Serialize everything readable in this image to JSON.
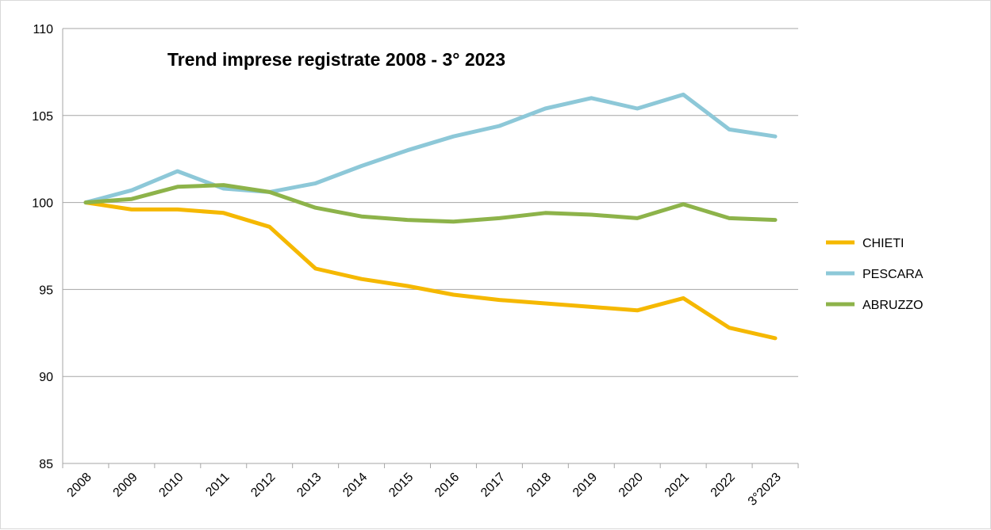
{
  "chart_data": {
    "type": "line",
    "title": "Trend imprese registrate 2008 - 3° 2023",
    "categories": [
      "2008",
      "2009",
      "2010",
      "2011",
      "2012",
      "2013",
      "2014",
      "2015",
      "2016",
      "2017",
      "2018",
      "2019",
      "2020",
      "2021",
      "2022",
      "3°2023"
    ],
    "ylim": [
      85,
      110
    ],
    "yticks": [
      85,
      90,
      95,
      100,
      105,
      110
    ],
    "grid": true,
    "legend_position": "right",
    "series": [
      {
        "name": "CHIETI",
        "color": "#f5b800",
        "values": [
          100,
          99.6,
          99.6,
          99.4,
          98.6,
          96.2,
          95.6,
          95.2,
          94.7,
          94.4,
          94.2,
          94.0,
          93.8,
          94.5,
          92.8,
          92.2
        ]
      },
      {
        "name": "PESCARA",
        "color": "#8dc8d8",
        "values": [
          100,
          100.7,
          101.8,
          100.8,
          100.6,
          101.1,
          102.1,
          103.0,
          103.8,
          104.4,
          105.4,
          106.0,
          105.4,
          106.2,
          104.2,
          103.8
        ]
      },
      {
        "name": "ABRUZZO",
        "color": "#8db34a",
        "values": [
          100,
          100.2,
          100.9,
          101.0,
          100.6,
          99.7,
          99.2,
          99.0,
          98.9,
          99.1,
          99.4,
          99.3,
          99.1,
          99.9,
          99.1,
          99.0
        ]
      }
    ]
  }
}
